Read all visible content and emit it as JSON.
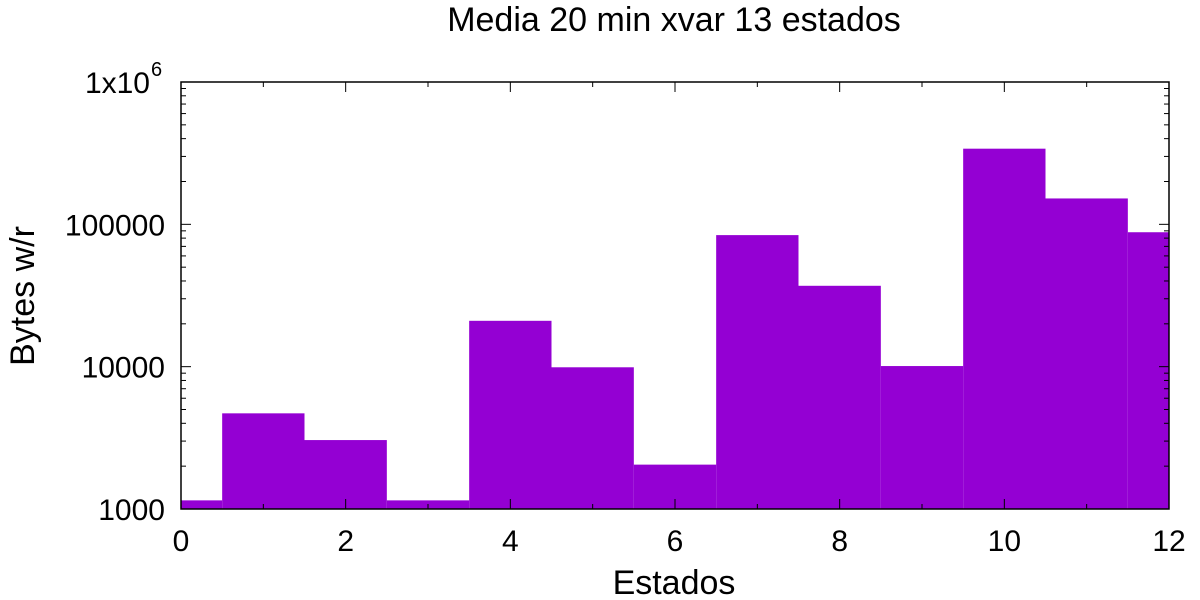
{
  "chart_data": {
    "type": "bar",
    "title": "Media  20 min xvar 13 estados",
    "xlabel": "Estados",
    "ylabel": "Bytes w/r",
    "y_scale": "log",
    "x_range": [
      0,
      12
    ],
    "ylim": [
      1000,
      1000000
    ],
    "grid": false,
    "legend": "none",
    "bar_color": "#9400D3",
    "categories": [
      0,
      1,
      2,
      3,
      4,
      5,
      6,
      7,
      8,
      9,
      10,
      11,
      12
    ],
    "values": [
      1150,
      4700,
      3050,
      1150,
      21000,
      9900,
      2050,
      84000,
      37000,
      10100,
      340000,
      152000,
      88000
    ],
    "x_ticks": [
      "0",
      "2",
      "4",
      "6",
      "8",
      "10",
      "12"
    ],
    "y_ticks": [
      {
        "value": 1000,
        "base": "1000",
        "exp": ""
      },
      {
        "value": 10000,
        "base": "10000",
        "exp": ""
      },
      {
        "value": 100000,
        "base": "100000",
        "exp": ""
      },
      {
        "value": 1000000,
        "base": "1x10",
        "exp": "6"
      }
    ]
  }
}
